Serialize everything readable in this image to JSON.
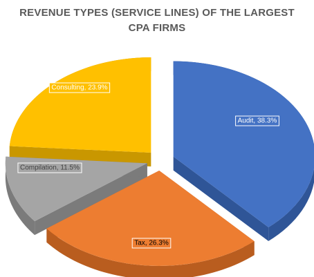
{
  "chart_data": {
    "type": "pie",
    "title_lines": [
      "REVENUE TYPES (SERVICE LINES) OF THE LARGEST",
      "CPA FIRMS"
    ],
    "unit": "%",
    "slices": [
      {
        "name": "Audit",
        "value": 38.3,
        "label": "Audit, 38.3%",
        "color": "#4472c4",
        "dark": "#2f5597",
        "text_color": "#ffffff"
      },
      {
        "name": "Tax",
        "value": 26.3,
        "label": "Tax, 26.3%",
        "color": "#ed7d31",
        "dark": "#b95d1f",
        "text_color": "#000000"
      },
      {
        "name": "Compilation",
        "value": 11.5,
        "label": "Compilation, 11.5%",
        "color": "#a5a5a5",
        "dark": "#7b7b7b",
        "text_color": "#404040"
      },
      {
        "name": "Consulting",
        "value": 23.9,
        "label": "Consulting, 23.9%",
        "color": "#ffc000",
        "dark": "#c99700",
        "text_color": "#ffffff"
      }
    ],
    "legend": "none",
    "style": "3d-exploded"
  }
}
